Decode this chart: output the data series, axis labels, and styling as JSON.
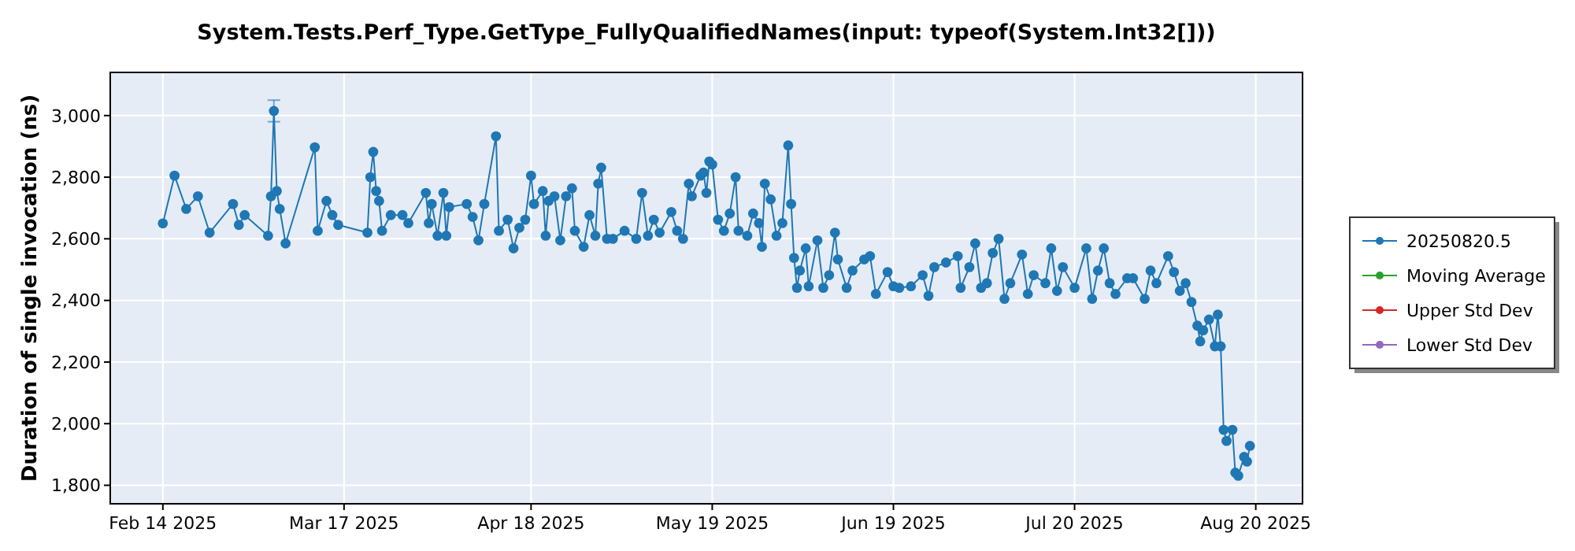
{
  "chart_data": {
    "type": "line",
    "title": "System.Tests.Perf_Type.GetType_FullyQualifiedNames(input: typeof(System.Int32[]))",
    "ylabel": "Duration of single invocation (ns)",
    "xlim": [
      "2025-02-05",
      "2025-08-28"
    ],
    "xticks": [
      {
        "value": "2025-02-14",
        "label": "Feb 14 2025"
      },
      {
        "value": "2025-03-17",
        "label": "Mar 17 2025"
      },
      {
        "value": "2025-04-18",
        "label": "Apr 18 2025"
      },
      {
        "value": "2025-05-19",
        "label": "May 19 2025"
      },
      {
        "value": "2025-06-19",
        "label": "Jun 19 2025"
      },
      {
        "value": "2025-07-20",
        "label": "Jul 20 2025"
      },
      {
        "value": "2025-08-20",
        "label": "Aug 20 2025"
      }
    ],
    "ylim": [
      1740,
      3140
    ],
    "yticks": [
      {
        "value": 1800,
        "label": "1,800"
      },
      {
        "value": 2000,
        "label": "2,000"
      },
      {
        "value": 2200,
        "label": "2,200"
      },
      {
        "value": 2400,
        "label": "2,400"
      },
      {
        "value": 2600,
        "label": "2,600"
      },
      {
        "value": 2800,
        "label": "2,800"
      },
      {
        "value": 3000,
        "label": "3,000"
      }
    ],
    "grid": true,
    "legend": "right",
    "marker": "circle",
    "line_style": "solid",
    "series": [
      {
        "name": "20250820.5",
        "color": "#1f77b4",
        "x": [
          "2025-02-14",
          "2025-02-16",
          "2025-02-18",
          "2025-02-20",
          "2025-02-22",
          "2025-02-26",
          "2025-02-27",
          "2025-02-28",
          "2025-03-04",
          "2025-03-04T12:00",
          "2025-03-05",
          "2025-03-05T12:00",
          "2025-03-06",
          "2025-03-07",
          "2025-03-12",
          "2025-03-12T12:00",
          "2025-03-14",
          "2025-03-15",
          "2025-03-16",
          "2025-03-21",
          "2025-03-21T12:00",
          "2025-03-22",
          "2025-03-22T12:00",
          "2025-03-23",
          "2025-03-23T12:00",
          "2025-03-25",
          "2025-03-27",
          "2025-03-28",
          "2025-03-31",
          "2025-03-31T12:00",
          "2025-04-01",
          "2025-04-02",
          "2025-04-03",
          "2025-04-03T12:00",
          "2025-04-04",
          "2025-04-07",
          "2025-04-08",
          "2025-04-09",
          "2025-04-10",
          "2025-04-12",
          "2025-04-12T12:00",
          "2025-04-14",
          "2025-04-15",
          "2025-04-16",
          "2025-04-17",
          "2025-04-18",
          "2025-04-18T12:00",
          "2025-04-20",
          "2025-04-20T12:00",
          "2025-04-21",
          "2025-04-22",
          "2025-04-23",
          "2025-04-24",
          "2025-04-25",
          "2025-04-25T12:00",
          "2025-04-27",
          "2025-04-28",
          "2025-04-29",
          "2025-04-29T12:00",
          "2025-04-30",
          "2025-05-01",
          "2025-05-02",
          "2025-05-04",
          "2025-05-06",
          "2025-05-07",
          "2025-05-08",
          "2025-05-09",
          "2025-05-10",
          "2025-05-12",
          "2025-05-13",
          "2025-05-14",
          "2025-05-15",
          "2025-05-15T12:00",
          "2025-05-17",
          "2025-05-17T12:00",
          "2025-05-18",
          "2025-05-18T12:00",
          "2025-05-19",
          "2025-05-20",
          "2025-05-21",
          "2025-05-22",
          "2025-05-23",
          "2025-05-23T12:00",
          "2025-05-25",
          "2025-05-26",
          "2025-05-27",
          "2025-05-27T12:00",
          "2025-05-28",
          "2025-05-29",
          "2025-05-30",
          "2025-05-31",
          "2025-06-01",
          "2025-06-01T12:00",
          "2025-06-02",
          "2025-06-02T12:00",
          "2025-06-03",
          "2025-06-04",
          "2025-06-04T12:00",
          "2025-06-06",
          "2025-06-07",
          "2025-06-08",
          "2025-06-09",
          "2025-06-09T12:00",
          "2025-06-11",
          "2025-06-12",
          "2025-06-14",
          "2025-06-15",
          "2025-06-16",
          "2025-06-18",
          "2025-06-19",
          "2025-06-20",
          "2025-06-22",
          "2025-06-24",
          "2025-06-25",
          "2025-06-26",
          "2025-06-28",
          "2025-06-30",
          "2025-06-30T12:00",
          "2025-07-02",
          "2025-07-03",
          "2025-07-04",
          "2025-07-05",
          "2025-07-06",
          "2025-07-07",
          "2025-07-08",
          "2025-07-09",
          "2025-07-11",
          "2025-07-12",
          "2025-07-13",
          "2025-07-15",
          "2025-07-16",
          "2025-07-17",
          "2025-07-18",
          "2025-07-20",
          "2025-07-22",
          "2025-07-23",
          "2025-07-24",
          "2025-07-25",
          "2025-07-26",
          "2025-07-27",
          "2025-07-29",
          "2025-07-30",
          "2025-08-01",
          "2025-08-02",
          "2025-08-03",
          "2025-08-05",
          "2025-08-06",
          "2025-08-07",
          "2025-08-08",
          "2025-08-09",
          "2025-08-10",
          "2025-08-10T12:00",
          "2025-08-11",
          "2025-08-12",
          "2025-08-13",
          "2025-08-13T12:00",
          "2025-08-14",
          "2025-08-14T12:00",
          "2025-08-15",
          "2025-08-16",
          "2025-08-16T12:00",
          "2025-08-17",
          "2025-08-18",
          "2025-08-18T12:00",
          "2025-08-19"
        ],
        "values": [
          2650,
          2805,
          2697,
          2738,
          2620,
          2713,
          2645,
          2677,
          2610,
          2738,
          3015,
          2755,
          2697,
          2585,
          2897,
          2626,
          2723,
          2677,
          2645,
          2620,
          2800,
          2882,
          2755,
          2723,
          2626,
          2677,
          2677,
          2651,
          2749,
          2651,
          2713,
          2610,
          2749,
          2610,
          2703,
          2713,
          2671,
          2595,
          2713,
          2933,
          2626,
          2662,
          2569,
          2636,
          2662,
          2805,
          2713,
          2755,
          2610,
          2723,
          2738,
          2595,
          2738,
          2764,
          2626,
          2574,
          2677,
          2610,
          2779,
          2831,
          2600,
          2600,
          2626,
          2600,
          2749,
          2610,
          2662,
          2620,
          2687,
          2626,
          2600,
          2779,
          2738,
          2805,
          2815,
          2749,
          2851,
          2841,
          2662,
          2626,
          2682,
          2800,
          2626,
          2610,
          2682,
          2651,
          2574,
          2779,
          2728,
          2610,
          2651,
          2903,
          2713,
          2538,
          2441,
          2497,
          2569,
          2446,
          2595,
          2441,
          2482,
          2620,
          2533,
          2441,
          2497,
          2533,
          2544,
          2421,
          2492,
          2446,
          2441,
          2446,
          2482,
          2415,
          2508,
          2523,
          2544,
          2441,
          2508,
          2585,
          2441,
          2456,
          2554,
          2600,
          2405,
          2456,
          2549,
          2421,
          2482,
          2456,
          2569,
          2431,
          2508,
          2441,
          2569,
          2405,
          2497,
          2569,
          2456,
          2421,
          2472,
          2472,
          2405,
          2497,
          2456,
          2544,
          2492,
          2431,
          2456,
          2395,
          2318,
          2267,
          2303,
          2338,
          2251,
          2354,
          2251,
          1980,
          1944,
          1980,
          1841,
          1831,
          1892,
          1877,
          1928
        ],
        "errors": [
          null,
          null,
          null,
          null,
          null,
          null,
          null,
          null,
          null,
          null,
          [
            2980,
            3050
          ],
          null,
          null,
          null,
          null,
          null,
          null,
          null,
          null,
          null,
          null,
          null,
          null,
          null,
          null,
          null,
          null,
          null,
          null,
          null,
          null,
          null,
          null,
          null,
          null,
          null,
          null,
          null,
          null,
          null,
          null,
          null,
          null,
          null,
          null,
          null,
          null,
          null,
          null,
          null,
          null,
          null,
          null,
          null,
          null,
          null,
          null,
          null,
          null,
          null,
          null,
          null,
          null,
          null,
          null,
          null,
          null,
          null,
          null,
          null,
          null,
          null,
          null,
          null,
          null,
          null,
          null,
          null,
          null,
          null,
          null,
          null,
          null,
          null,
          null,
          null,
          null,
          null,
          null,
          null,
          null,
          null,
          null,
          null,
          null,
          null,
          null,
          null,
          null,
          null,
          null,
          null,
          null,
          null,
          null,
          null,
          null,
          null,
          null,
          null,
          null,
          null,
          null,
          null,
          null,
          null,
          null,
          null,
          null,
          null,
          null,
          null,
          null,
          null,
          null,
          null,
          null,
          null,
          null,
          null,
          null,
          null,
          null,
          null,
          null,
          null,
          null,
          null,
          null,
          null,
          null,
          null,
          null,
          null,
          null,
          null,
          null,
          null,
          null,
          null,
          null,
          null,
          null,
          null,
          null,
          null,
          null,
          null,
          null,
          null,
          null,
          null,
          null,
          null,
          null
        ]
      },
      {
        "name": "Moving Average",
        "color": "#2ca02c"
      },
      {
        "name": "Upper Std Dev",
        "color": "#d62728"
      },
      {
        "name": "Lower Std Dev",
        "color": "#9467bd"
      }
    ]
  }
}
